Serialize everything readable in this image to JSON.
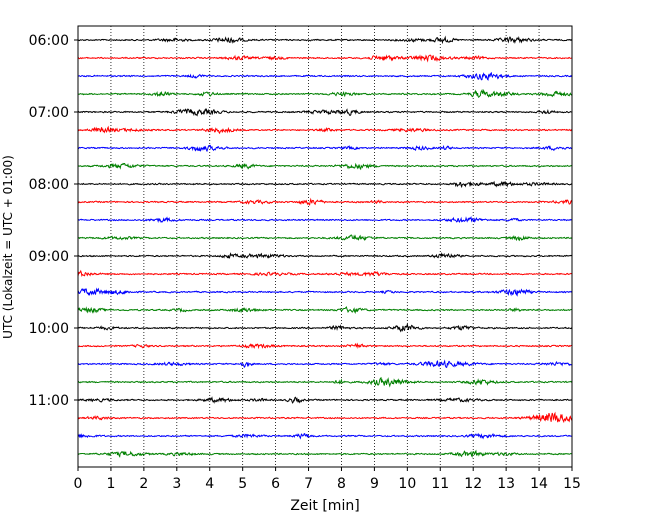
{
  "chart_data": {
    "type": "line",
    "title": "",
    "xlabel": "Zeit  [min]",
    "ylabel": "UTC (Lokalzeit = UTC + 01:00)",
    "xlim": [
      0,
      15
    ],
    "x_ticks": [
      0,
      1,
      2,
      3,
      4,
      5,
      6,
      7,
      8,
      9,
      10,
      11,
      12,
      13,
      14,
      15
    ],
    "x_tick_labels": [
      "0",
      "1",
      "2",
      "3",
      "4",
      "5",
      "6",
      "7",
      "8",
      "9",
      "10",
      "11",
      "12",
      "13",
      "14",
      "15"
    ],
    "y_tick_labels": [
      "06:00",
      "07:00",
      "08:00",
      "09:00",
      "10:00",
      "11:00"
    ],
    "grid": "vertical dotted",
    "trace_colors": [
      "#000000",
      "#ff0000",
      "#0000ff",
      "#008000"
    ],
    "traces": [
      {
        "start": "06:00",
        "color": "#000000"
      },
      {
        "start": "06:15",
        "color": "#ff0000"
      },
      {
        "start": "06:30",
        "color": "#0000ff"
      },
      {
        "start": "06:45",
        "color": "#008000"
      },
      {
        "start": "07:00",
        "color": "#000000"
      },
      {
        "start": "07:15",
        "color": "#ff0000"
      },
      {
        "start": "07:30",
        "color": "#0000ff"
      },
      {
        "start": "07:45",
        "color": "#008000"
      },
      {
        "start": "08:00",
        "color": "#000000"
      },
      {
        "start": "08:15",
        "color": "#ff0000"
      },
      {
        "start": "08:30",
        "color": "#0000ff"
      },
      {
        "start": "08:45",
        "color": "#008000"
      },
      {
        "start": "09:00",
        "color": "#000000"
      },
      {
        "start": "09:15",
        "color": "#ff0000"
      },
      {
        "start": "09:30",
        "color": "#0000ff"
      },
      {
        "start": "09:45",
        "color": "#008000"
      },
      {
        "start": "10:00",
        "color": "#000000"
      },
      {
        "start": "10:15",
        "color": "#ff0000"
      },
      {
        "start": "10:30",
        "color": "#0000ff"
      },
      {
        "start": "10:45",
        "color": "#008000"
      },
      {
        "start": "11:00",
        "color": "#000000"
      },
      {
        "start": "11:15",
        "color": "#ff0000"
      },
      {
        "start": "11:30",
        "color": "#0000ff"
      },
      {
        "start": "11:45",
        "color": "#008000"
      }
    ]
  }
}
